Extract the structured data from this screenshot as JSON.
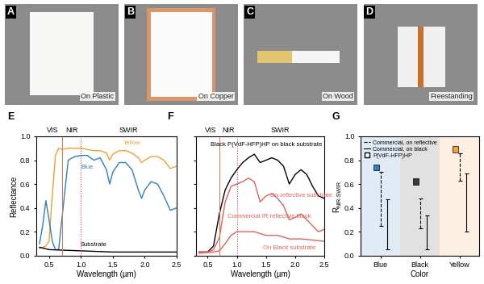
{
  "photos": [
    {
      "panel_label": "A",
      "caption": "On Plastic"
    },
    {
      "panel_label": "B",
      "caption": "On Copper"
    },
    {
      "panel_label": "C",
      "caption": "On Wood"
    },
    {
      "panel_label": "D",
      "caption": "Freestanding"
    }
  ],
  "chart_data": [
    {
      "panel_label": "E",
      "type": "line",
      "xlabel": "Wavelength (µm)",
      "ylabel": "Reflectance",
      "xlim": [
        0.3,
        2.5
      ],
      "ylim": [
        0.0,
        1.0
      ],
      "xticks": [
        0.5,
        1.0,
        1.5,
        2.0,
        2.5
      ],
      "yticks": [
        0.0,
        0.2,
        0.4,
        0.6,
        0.8,
        1.0
      ],
      "bands": [
        {
          "label": "VIS",
          "range": [
            0.4,
            0.7
          ]
        },
        {
          "label": "NIR",
          "range": [
            0.7,
            1.0
          ]
        },
        {
          "label": "SWIR",
          "range": [
            1.0,
            2.5
          ]
        }
      ],
      "series": [
        {
          "name": "Yellow",
          "color": "#f0a030",
          "x": [
            0.35,
            0.4,
            0.45,
            0.5,
            0.55,
            0.6,
            0.65,
            0.7,
            0.8,
            0.9,
            1.0,
            1.1,
            1.2,
            1.3,
            1.4,
            1.45,
            1.5,
            1.6,
            1.7,
            1.8,
            1.9,
            1.95,
            2.0,
            2.1,
            2.2,
            2.3,
            2.4,
            2.5
          ],
          "values": [
            0.06,
            0.07,
            0.08,
            0.12,
            0.5,
            0.84,
            0.9,
            0.89,
            0.9,
            0.9,
            0.9,
            0.89,
            0.88,
            0.88,
            0.86,
            0.8,
            0.85,
            0.88,
            0.88,
            0.86,
            0.82,
            0.78,
            0.8,
            0.83,
            0.83,
            0.8,
            0.73,
            0.75
          ]
        },
        {
          "name": "Blue",
          "color": "#2f7fc1",
          "x": [
            0.35,
            0.4,
            0.45,
            0.5,
            0.55,
            0.6,
            0.65,
            0.7,
            0.8,
            0.9,
            1.0,
            1.1,
            1.2,
            1.3,
            1.4,
            1.45,
            1.5,
            1.6,
            1.7,
            1.8,
            1.9,
            1.95,
            2.0,
            2.1,
            2.2,
            2.3,
            2.4,
            2.5
          ],
          "values": [
            0.1,
            0.25,
            0.46,
            0.3,
            0.12,
            0.05,
            0.05,
            0.3,
            0.8,
            0.83,
            0.84,
            0.84,
            0.8,
            0.82,
            0.72,
            0.6,
            0.7,
            0.78,
            0.78,
            0.72,
            0.55,
            0.48,
            0.55,
            0.62,
            0.6,
            0.5,
            0.38,
            0.4
          ]
        },
        {
          "name": "Substrate",
          "color": "#000000",
          "x": [
            0.35,
            0.5,
            1.0,
            1.5,
            2.0,
            2.5
          ],
          "values": [
            0.07,
            0.05,
            0.04,
            0.03,
            0.03,
            0.03
          ]
        }
      ]
    },
    {
      "panel_label": "F",
      "type": "line",
      "xlabel": "Wavelength (µm)",
      "tick_labels": "x",
      "xlim": [
        0.3,
        2.5
      ],
      "ylim": [
        0.0,
        1.0
      ],
      "xticks": [
        0.5,
        1.0,
        1.5,
        2.0,
        2.5
      ],
      "yticks": [
        0.0,
        0.2,
        0.4,
        0.6,
        0.8,
        1.0
      ],
      "bands": [
        {
          "label": "VIS",
          "range": [
            0.4,
            0.7
          ]
        },
        {
          "label": "NIR",
          "range": [
            0.7,
            1.0
          ]
        },
        {
          "label": "SWIR",
          "range": [
            1.0,
            2.5
          ]
        }
      ],
      "annotations": [
        {
          "text": "Commercial IR reflective black",
          "color": "#e0605a"
        }
      ],
      "series": [
        {
          "name": "Black P(VdF-HFP)HP on black substrate",
          "color": "#000000",
          "x": [
            0.35,
            0.5,
            0.6,
            0.7,
            0.8,
            0.9,
            1.0,
            1.1,
            1.2,
            1.3,
            1.4,
            1.5,
            1.6,
            1.7,
            1.8,
            1.9,
            2.0,
            2.1,
            2.2,
            2.3,
            2.4,
            2.5
          ],
          "values": [
            0.03,
            0.03,
            0.08,
            0.35,
            0.55,
            0.65,
            0.72,
            0.78,
            0.82,
            0.85,
            0.78,
            0.8,
            0.82,
            0.8,
            0.75,
            0.6,
            0.68,
            0.72,
            0.68,
            0.58,
            0.5,
            0.48
          ]
        },
        {
          "name": "On reflective substrate",
          "color": "#e0605a",
          "x": [
            0.35,
            0.5,
            0.6,
            0.7,
            0.8,
            0.9,
            1.0,
            1.1,
            1.2,
            1.3,
            1.4,
            1.5,
            1.6,
            1.7,
            1.8,
            1.9,
            2.0,
            2.1,
            2.2,
            2.3,
            2.4,
            2.5
          ],
          "values": [
            0.03,
            0.03,
            0.05,
            0.15,
            0.45,
            0.58,
            0.6,
            0.62,
            0.65,
            0.62,
            0.45,
            0.5,
            0.52,
            0.48,
            0.42,
            0.3,
            0.32,
            0.35,
            0.3,
            0.25,
            0.2,
            0.22
          ]
        },
        {
          "name": "On Black substrate",
          "color": "#e0605a",
          "x": [
            0.35,
            0.6,
            0.7,
            0.8,
            0.9,
            1.0,
            1.1,
            1.3,
            1.5,
            1.7,
            1.9,
            2.1,
            2.3,
            2.5
          ],
          "values": [
            0.02,
            0.03,
            0.04,
            0.1,
            0.17,
            0.2,
            0.2,
            0.2,
            0.17,
            0.17,
            0.14,
            0.14,
            0.13,
            0.12
          ]
        }
      ]
    },
    {
      "panel_label": "G",
      "type": "scatter",
      "categories": [
        "Blue",
        "Black",
        "Yellow"
      ],
      "xlabel": "Color",
      "ylabel": "R",
      "ylabel_subscript": "NIR-SWIR",
      "ylim": [
        0.0,
        1.0
      ],
      "yticks": [
        0.0,
        0.2,
        0.4,
        0.6,
        0.8,
        1.0
      ],
      "legend": "upper left",
      "series": [
        {
          "name": "Commercial, on reflective",
          "type": "range",
          "line_style": "dashed",
          "color": "#000000",
          "low": [
            0.25,
            0.23,
            0.63
          ],
          "high": [
            0.7,
            0.48,
            0.86
          ]
        },
        {
          "name": "Commercial, on black",
          "type": "range",
          "line_style": "solid",
          "color": "#000000",
          "low": [
            0.05,
            0.05,
            0.2
          ],
          "high": [
            0.47,
            0.34,
            0.69
          ]
        },
        {
          "name": "P(VdF-HFP)HP",
          "type": "scatter",
          "marker": "square",
          "colors": [
            "#2f7fc1",
            "#3a3a3a",
            "#f5a040"
          ],
          "values": [
            0.74,
            0.62,
            0.89
          ]
        }
      ]
    }
  ]
}
